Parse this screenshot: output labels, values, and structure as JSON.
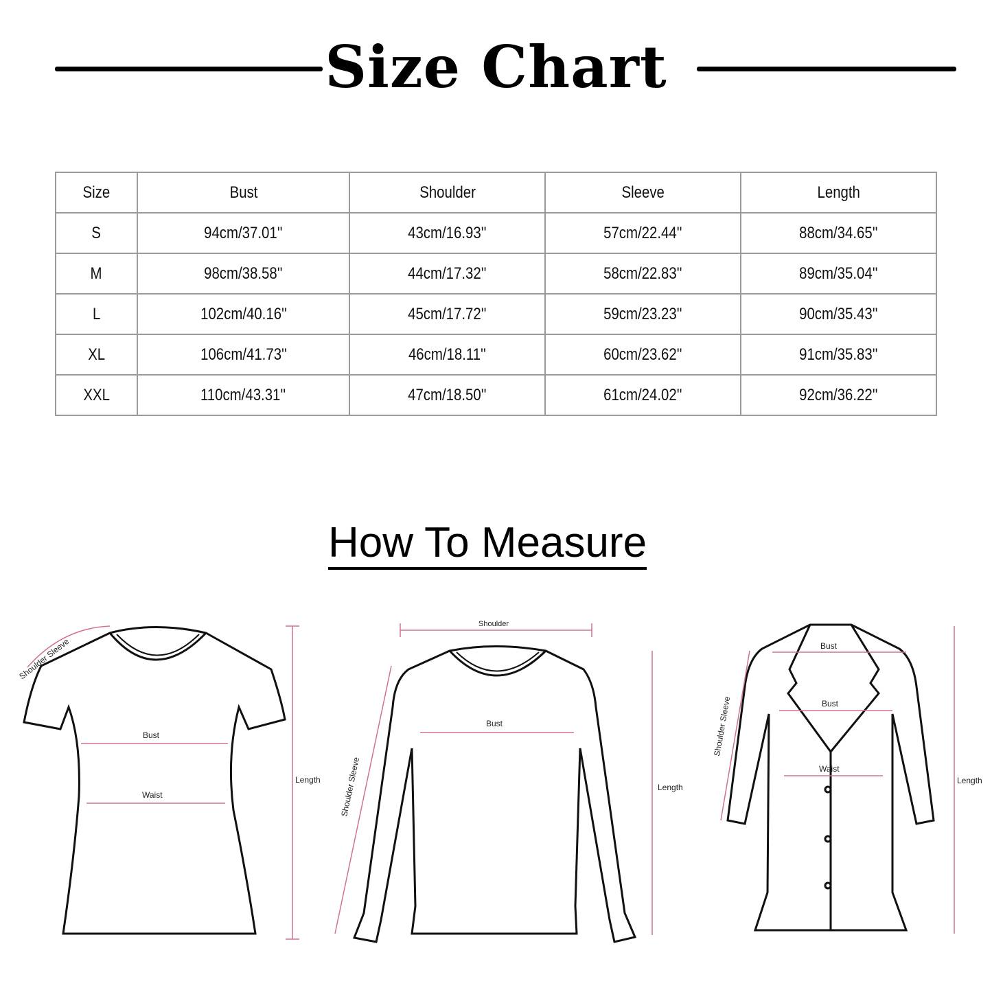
{
  "title": "Size Chart",
  "table": {
    "headers": [
      "Size",
      "Bust",
      "Shoulder",
      "Sleeve",
      "Length"
    ],
    "rows": [
      [
        "S",
        "94cm/37.01''",
        "43cm/16.93''",
        "57cm/22.44''",
        "88cm/34.65''"
      ],
      [
        "M",
        "98cm/38.58''",
        "44cm/17.32''",
        "58cm/22.83''",
        "89cm/35.04''"
      ],
      [
        "L",
        "102cm/40.16''",
        "45cm/17.72''",
        "59cm/23.23''",
        "90cm/35.43''"
      ],
      [
        "XL",
        "106cm/41.73''",
        "46cm/18.11''",
        "60cm/23.62''",
        "91cm/35.83''"
      ],
      [
        "XXL",
        "110cm/43.31''",
        "47cm/18.50''",
        "61cm/24.02''",
        "92cm/36.22''"
      ]
    ]
  },
  "measure_title": "How To Measure",
  "tshirt": {
    "shoulder_sleeve": "Shoulder Sleeve",
    "bust": "Bust",
    "waist": "Waist",
    "length": "Length"
  },
  "sweater": {
    "shoulder": "Shoulder",
    "bust": "Bust",
    "shoulder_sleeve": "Shoulder Sleeve",
    "length": "Length"
  },
  "coat": {
    "bust_top": "Bust",
    "bust": "Bust",
    "waist": "Waist",
    "shoulder_sleeve": "Shoulder Sleeve",
    "length": "Length"
  },
  "colors": {
    "measure_line": "#d0738f",
    "outline": "#111111",
    "table_border": "#9a9a9a"
  }
}
